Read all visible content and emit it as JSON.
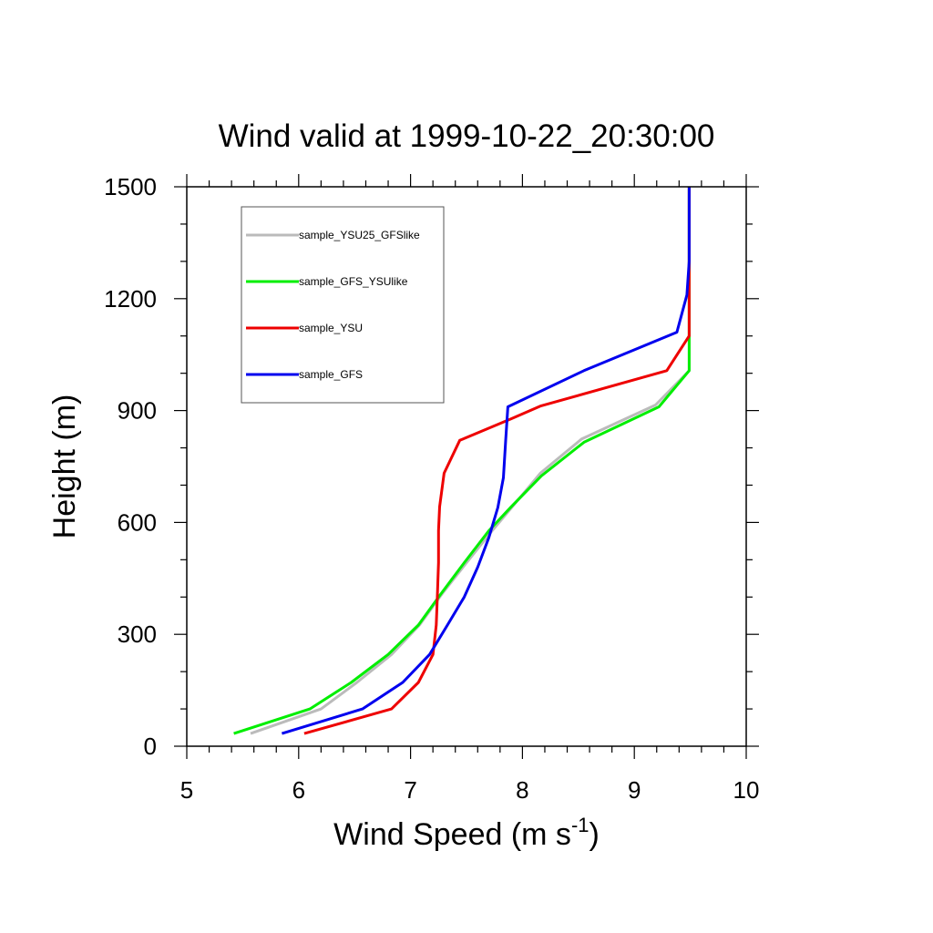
{
  "chart_data": {
    "type": "line",
    "title": "Wind valid at 1999-10-22_20:30:00",
    "xlabel": "Wind Speed (m s",
    "xlabel_sup": "-1",
    "xlabel_end": ")",
    "ylabel": "Height (m)",
    "xlim": [
      5,
      10
    ],
    "ylim": [
      0,
      1500
    ],
    "xticks": [
      "5",
      "6",
      "7",
      "8",
      "9",
      "10"
    ],
    "yticks": [
      "0",
      "300",
      "600",
      "900",
      "1200",
      "1500"
    ],
    "grid": false,
    "legend_position": "top-left",
    "series": [
      {
        "name": "sample_YSU25_GFSlike",
        "color": "#bbbbbb",
        "x": [
          5.57,
          6.2,
          6.52,
          6.83,
          7.08,
          7.28,
          7.5,
          7.73,
          7.91,
          8.16,
          8.53,
          9.19,
          9.49,
          9.49,
          9.49
        ],
        "y": [
          34,
          100,
          171,
          246,
          325,
          408,
          492,
          578,
          642,
          732,
          824,
          915,
          1007,
          1100,
          1500
        ]
      },
      {
        "name": "sample_GFS_YSUlike",
        "color": "#00ee00",
        "x": [
          5.42,
          6.1,
          6.47,
          6.8,
          7.07,
          7.27,
          7.48,
          7.7,
          7.9,
          8.17,
          8.55,
          9.22,
          9.49,
          9.49,
          9.49
        ],
        "y": [
          34,
          100,
          171,
          246,
          325,
          408,
          492,
          578,
          642,
          725,
          815,
          910,
          1007,
          1100,
          1500
        ]
      },
      {
        "name": "sample_YSU",
        "color": "#ee0000",
        "x": [
          6.05,
          6.83,
          7.07,
          7.2,
          7.23,
          7.24,
          7.25,
          7.25,
          7.26,
          7.3,
          7.44,
          7.9,
          8.16,
          9.29,
          9.49,
          9.49
        ],
        "y": [
          34,
          100,
          171,
          246,
          325,
          408,
          492,
          578,
          642,
          732,
          820,
          878,
          912,
          1007,
          1100,
          1500
        ]
      },
      {
        "name": "sample_GFS",
        "color": "#0000ee",
        "x": [
          5.85,
          6.57,
          6.93,
          7.17,
          7.33,
          7.48,
          7.6,
          7.7,
          7.78,
          7.83,
          7.85,
          7.87,
          8.55,
          9.38,
          9.47,
          9.49,
          9.49
        ],
        "y": [
          34,
          100,
          171,
          246,
          325,
          400,
          480,
          560,
          640,
          720,
          820,
          910,
          1007,
          1110,
          1210,
          1300,
          1500
        ]
      }
    ]
  }
}
